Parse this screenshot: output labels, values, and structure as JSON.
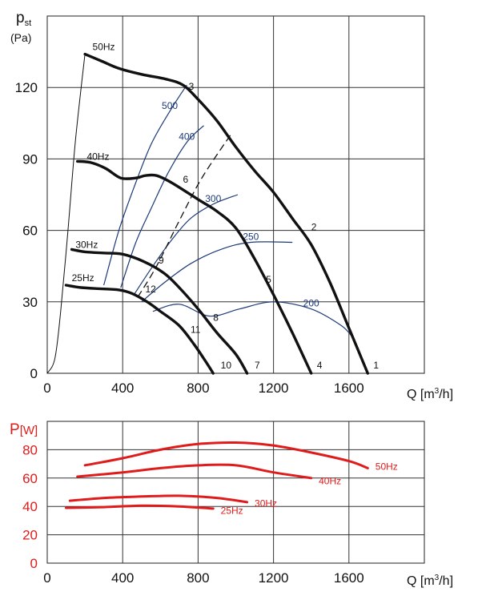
{
  "chart_data": [
    {
      "type": "line",
      "ylabel_main": "p",
      "ylabel_sub": "st",
      "ylabel_unit": "(Pa)",
      "xlabel_q": "Q [m",
      "xlabel_sup": "3",
      "xlabel_end": "/h]",
      "xlim": [
        0,
        2000
      ],
      "ylim": [
        0,
        150
      ],
      "xticks": [
        0,
        400,
        800,
        1200,
        1600
      ],
      "yticks": [
        0,
        30,
        60,
        90,
        120
      ],
      "grid": true,
      "colors": {
        "curve": "#111111",
        "iso": "#1c3a78",
        "grid": "#222222"
      },
      "series": [
        {
          "name": "50Hz",
          "points": [
            [
              200,
              134
            ],
            [
              290,
              131
            ],
            [
              380,
              128
            ],
            [
              500,
              125.5
            ],
            [
              630,
              123.5
            ],
            [
              720,
              121
            ],
            [
              800,
              115
            ],
            [
              900,
              106
            ],
            [
              1000,
              95
            ],
            [
              1100,
              85
            ],
            [
              1200,
              76
            ],
            [
              1300,
              65
            ],
            [
              1400,
              54
            ],
            [
              1500,
              38
            ],
            [
              1600,
              19
            ],
            [
              1700,
              0
            ]
          ]
        },
        {
          "name": "40Hz",
          "points": [
            [
              160,
              89
            ],
            [
              230,
              88.5
            ],
            [
              310,
              86
            ],
            [
              390,
              82
            ],
            [
              470,
              82
            ],
            [
              520,
              83
            ],
            [
              580,
              83
            ],
            [
              660,
              80
            ],
            [
              800,
              73
            ],
            [
              900,
              68
            ],
            [
              1000,
              61
            ],
            [
              1100,
              48
            ],
            [
              1200,
              33
            ],
            [
              1300,
              17
            ],
            [
              1400,
              0
            ]
          ]
        },
        {
          "name": "30Hz",
          "points": [
            [
              130,
              52
            ],
            [
              200,
              51
            ],
            [
              300,
              50.5
            ],
            [
              400,
              50
            ],
            [
              510,
              47
            ],
            [
              620,
              42
            ],
            [
              700,
              36
            ],
            [
              800,
              27
            ],
            [
              900,
              17
            ],
            [
              1000,
              8
            ],
            [
              1060,
              0
            ]
          ]
        },
        {
          "name": "25Hz",
          "points": [
            [
              100,
              37
            ],
            [
              180,
              36
            ],
            [
              280,
              35.5
            ],
            [
              380,
              35
            ],
            [
              450,
              33.5
            ],
            [
              530,
              30
            ],
            [
              600,
              26
            ],
            [
              700,
              20
            ],
            [
              780,
              12
            ],
            [
              840,
              5
            ],
            [
              880,
              0
            ]
          ]
        }
      ],
      "iso_lines": [
        {
          "label": "500",
          "points": [
            [
              300,
              37
            ],
            [
              380,
              60
            ],
            [
              460,
              78
            ],
            [
              550,
              96
            ],
            [
              650,
              110
            ],
            [
              740,
              121
            ]
          ]
        },
        {
          "label": "400",
          "points": [
            [
              390,
              36
            ],
            [
              470,
              55
            ],
            [
              550,
              69
            ],
            [
              640,
              84
            ],
            [
              740,
              97
            ],
            [
              830,
              104
            ]
          ]
        },
        {
          "label": "300",
          "points": [
            [
              460,
              33
            ],
            [
              560,
              45
            ],
            [
              660,
              56
            ],
            [
              760,
              65
            ],
            [
              880,
              71
            ],
            [
              1010,
              75
            ]
          ]
        },
        {
          "label": "250",
          "points": [
            [
              500,
              30
            ],
            [
              620,
              38
            ],
            [
              760,
              46
            ],
            [
              920,
              52
            ],
            [
              1080,
              55
            ],
            [
              1300,
              55
            ]
          ]
        },
        {
          "label": "200",
          "points": [
            [
              560,
              26
            ],
            [
              700,
              29
            ],
            [
              860,
              24
            ],
            [
              1020,
              27
            ],
            [
              1200,
              30
            ],
            [
              1400,
              27
            ],
            [
              1560,
              20
            ],
            [
              1620,
              15
            ]
          ]
        }
      ],
      "system_line": {
        "points": [
          [
            480,
            32
          ],
          [
            580,
            45
          ],
          [
            700,
            64
          ],
          [
            820,
            82
          ],
          [
            980,
            101
          ]
        ]
      },
      "zero_flow_line": {
        "points": [
          [
            0,
            0
          ],
          [
            40,
            6
          ],
          [
            70,
            25
          ],
          [
            110,
            60
          ],
          [
            150,
            98
          ],
          [
            200,
            134
          ]
        ]
      },
      "point_labels": [
        {
          "label": "1",
          "q": 1730,
          "p": 2
        },
        {
          "label": "2",
          "q": 1400,
          "p": 60
        },
        {
          "label": "3",
          "q": 750,
          "p": 119
        },
        {
          "label": "4",
          "q": 1430,
          "p": 2
        },
        {
          "label": "5",
          "q": 1160,
          "p": 38
        },
        {
          "label": "6",
          "q": 720,
          "p": 80
        },
        {
          "label": "7",
          "q": 1100,
          "p": 2
        },
        {
          "label": "8",
          "q": 880,
          "p": 22
        },
        {
          "label": "9",
          "q": 590,
          "p": 46
        },
        {
          "label": "10",
          "q": 920,
          "p": 2
        },
        {
          "label": "11",
          "q": 760,
          "p": 17
        },
        {
          "label": "12",
          "q": 520,
          "p": 34
        }
      ],
      "series_labels": [
        {
          "name": "50Hz",
          "q": 240,
          "p": 134
        },
        {
          "name": "40Hz",
          "q": 210,
          "p": 88
        },
        {
          "name": "30Hz",
          "q": 150,
          "p": 51
        },
        {
          "name": "25Hz",
          "q": 130,
          "p": 37
        }
      ]
    },
    {
      "type": "line",
      "ylabel_main": "P",
      "ylabel_unit": "[W]",
      "xlabel_q": "Q [m",
      "xlabel_sup": "3",
      "xlabel_end": "/h]",
      "xlim": [
        0,
        2000
      ],
      "ylim": [
        0,
        100
      ],
      "xticks": [
        0,
        400,
        800,
        1200,
        1600
      ],
      "yticks": [
        0,
        20,
        40,
        60,
        80
      ],
      "grid": true,
      "colors": {
        "curve": "#e01b1b",
        "axis_label": "#e01b1b",
        "tick": "#e01b1b"
      },
      "series": [
        {
          "name": "50Hz",
          "points": [
            [
              200,
              69
            ],
            [
              400,
              74
            ],
            [
              600,
              80
            ],
            [
              800,
              84
            ],
            [
              1000,
              85
            ],
            [
              1200,
              83
            ],
            [
              1400,
              78
            ],
            [
              1600,
              72
            ],
            [
              1700,
              67
            ]
          ]
        },
        {
          "name": "40Hz",
          "points": [
            [
              160,
              61
            ],
            [
              400,
              64
            ],
            [
              600,
              67
            ],
            [
              800,
              69
            ],
            [
              1000,
              69
            ],
            [
              1200,
              64
            ],
            [
              1400,
              60
            ]
          ]
        },
        {
          "name": "30Hz",
          "points": [
            [
              120,
              44
            ],
            [
              300,
              46
            ],
            [
              500,
              47
            ],
            [
              700,
              47.5
            ],
            [
              900,
              46
            ],
            [
              1060,
              43
            ]
          ]
        },
        {
          "name": "25Hz",
          "points": [
            [
              100,
              39
            ],
            [
              300,
              39.5
            ],
            [
              500,
              40.5
            ],
            [
              700,
              40
            ],
            [
              880,
              38.5
            ]
          ]
        }
      ],
      "series_labels": [
        {
          "name": "50Hz",
          "q": 1740,
          "p": 68
        },
        {
          "name": "40Hz",
          "q": 1440,
          "p": 58
        },
        {
          "name": "30Hz",
          "q": 1100,
          "p": 42
        },
        {
          "name": "25Hz",
          "q": 920,
          "p": 37
        }
      ]
    }
  ]
}
